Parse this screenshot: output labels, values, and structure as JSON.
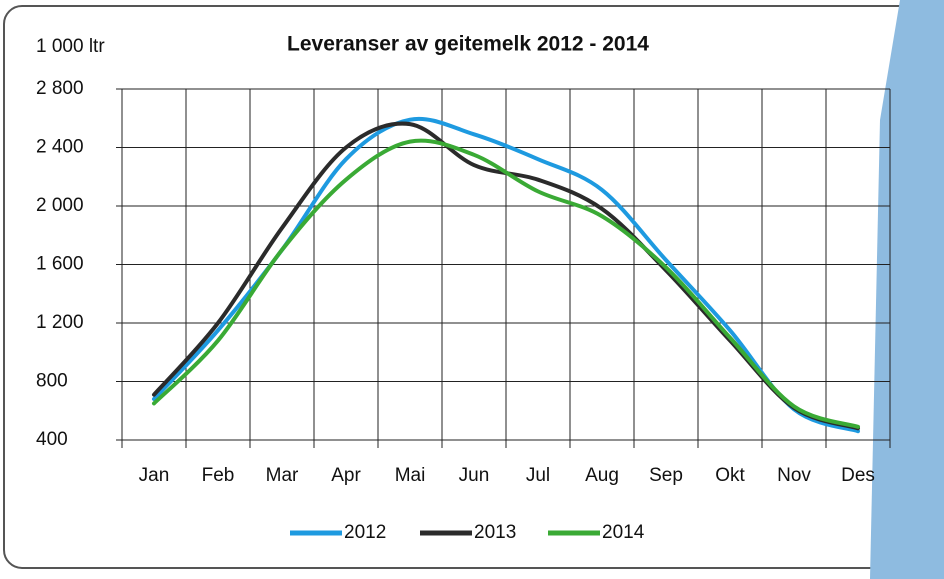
{
  "chart_data": {
    "type": "line",
    "title": "Leveranser av geitemelk 2012 - 2014",
    "y_label": "1 000 ltr",
    "categories": [
      "Jan",
      "Feb",
      "Mar",
      "Apr",
      "Mai",
      "Jun",
      "Jul",
      "Aug",
      "Sep",
      "Okt",
      "Nov",
      "Des"
    ],
    "series": [
      {
        "name": "2012",
        "color": "#1e9ae0",
        "values": [
          680,
          1150,
          1700,
          2320,
          2590,
          2490,
          2320,
          2110,
          1630,
          1150,
          610,
          460
        ]
      },
      {
        "name": "2013",
        "color": "#2b2b2b",
        "values": [
          710,
          1200,
          1850,
          2400,
          2560,
          2280,
          2180,
          1980,
          1560,
          1080,
          620,
          480
        ]
      },
      {
        "name": "2014",
        "color": "#3aaa35",
        "values": [
          650,
          1080,
          1700,
          2180,
          2440,
          2350,
          2100,
          1930,
          1580,
          1100,
          630,
          490
        ]
      }
    ],
    "ylim": [
      400,
      2800
    ],
    "yticks": [
      400,
      800,
      {
        "value": 1200,
        "label": "1 200"
      },
      {
        "value": 1600,
        "label": "1 600"
      },
      {
        "value": 2000,
        "label": "2 000"
      },
      {
        "value": 2400,
        "label": "2 400"
      },
      {
        "value": 2800,
        "label": "2 800"
      }
    ],
    "grid": true,
    "legend": "bottom"
  }
}
